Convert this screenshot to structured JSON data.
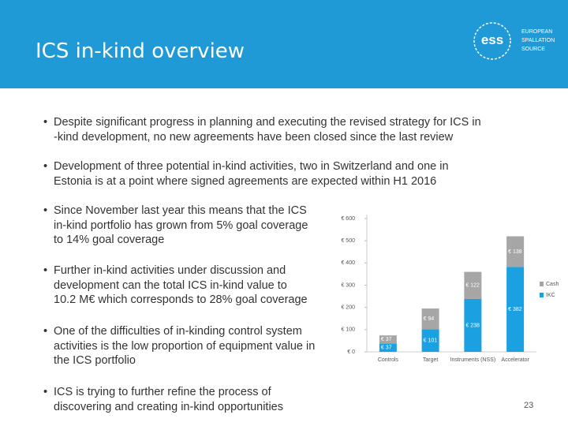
{
  "header": {
    "title": "ICS in-kind overview",
    "logo": {
      "mark": "ess",
      "lines": [
        "EUROPEAN",
        "SPALLATION",
        "SOURCE"
      ]
    }
  },
  "bullets": [
    [
      "Despite significant progress in planning and executing the revised strategy for ICS in",
      "-kind development, no new agreements have been closed since the last review"
    ],
    [
      "Development of three potential in-kind activities, two in Switzerland and one in",
      "Estonia is at a point where signed agreements are expected within H1 2016"
    ],
    [
      "Since November last year this means that the ICS",
      "in-kind portfolio has grown from 5% goal coverage",
      "to 14% goal coverage"
    ],
    [
      "Further in-kind activities under discussion and",
      "development can the total ICS in-kind value to",
      "10.2 M€ which corresponds to 28% goal coverage"
    ],
    [
      "One of the difficulties of in-kinding control system",
      "activities is the low proportion of equipment value in",
      "the ICS portfolio"
    ],
    [
      "ICS is trying to further refine the process of",
      "discovering and creating in-kind opportunities"
    ]
  ],
  "page_number": "23",
  "chart_data": {
    "type": "stacked_bar",
    "categories": [
      "Controls",
      "Target",
      "Instruments (NSS)",
      "Accelerator"
    ],
    "series": [
      {
        "name": "IKC",
        "color": "#1ba1e2",
        "values": [
          37,
          101,
          238,
          382
        ],
        "value_labels": [
          "€ 37",
          "€ 101",
          "€ 238",
          "€ 382"
        ]
      },
      {
        "name": "Cash",
        "color": "#a6a6a6",
        "values": [
          37,
          94,
          122,
          138
        ],
        "value_labels": [
          "€ 37",
          "€ 94",
          "€ 122",
          "€ 138"
        ]
      }
    ],
    "ylim": [
      0,
      600
    ],
    "yticks": [
      {
        "value": 0,
        "label": "€ 0"
      },
      {
        "value": 100,
        "label": "€ 100"
      },
      {
        "value": 200,
        "label": "€ 200"
      },
      {
        "value": 300,
        "label": "€ 300"
      },
      {
        "value": 400,
        "label": "€ 400"
      },
      {
        "value": 500,
        "label": "€ 500"
      },
      {
        "value": 600,
        "label": "€ 600"
      }
    ],
    "legend": "right"
  }
}
